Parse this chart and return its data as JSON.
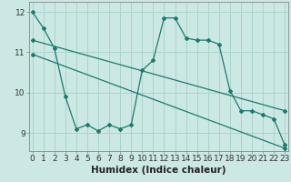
{
  "title": "",
  "xlabel": "Humidex (Indice chaleur)",
  "bg_color": "#cce8e4",
  "grid_color": "#aad4cc",
  "line_color": "#1a7a6e",
  "x_ticks": [
    0,
    1,
    2,
    3,
    4,
    5,
    6,
    7,
    8,
    9,
    10,
    11,
    12,
    13,
    14,
    15,
    16,
    17,
    18,
    19,
    20,
    21,
    22,
    23
  ],
  "y_ticks": [
    9,
    10,
    11,
    12
  ],
  "ylim": [
    8.55,
    12.25
  ],
  "xlim": [
    -0.3,
    23.3
  ],
  "series1_x": [
    0,
    1,
    2,
    3,
    4,
    5,
    6,
    7,
    8,
    9,
    10,
    11,
    12,
    13,
    14,
    15,
    16,
    17,
    18,
    19,
    20,
    21,
    22,
    23
  ],
  "series1_y": [
    12.0,
    11.6,
    11.1,
    9.9,
    9.1,
    9.2,
    9.05,
    9.2,
    9.1,
    9.2,
    10.55,
    10.8,
    11.85,
    11.85,
    11.35,
    11.3,
    11.3,
    11.2,
    10.05,
    9.55,
    9.55,
    9.45,
    9.35,
    8.7
  ],
  "series2_x": [
    0,
    23
  ],
  "series2_y": [
    11.3,
    9.55
  ],
  "series3_x": [
    0,
    23
  ],
  "series3_y": [
    10.95,
    8.62
  ],
  "tick_fontsize": 6.5,
  "xlabel_fontsize": 7.5
}
